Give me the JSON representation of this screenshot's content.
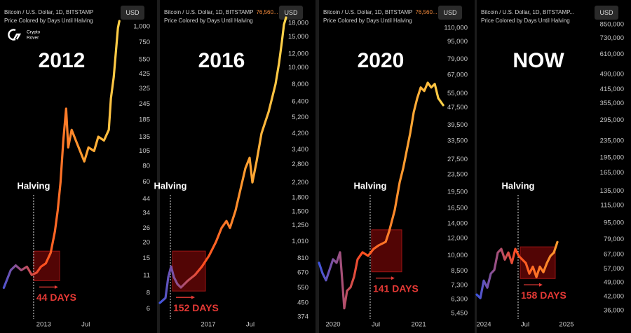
{
  "chart_data": [
    {
      "type": "line",
      "title": "2012",
      "header": "Bitcoin / U.S. Dollar, 1D, BITSTAMP",
      "subtitle": "Price Colored by Days Until Halving",
      "unit": "USD",
      "watermark": [
        "Crypto",
        "Rover"
      ],
      "log_scale": true,
      "colors": [
        "#3e55e0",
        "#ff4b1f",
        "#ff9a2e",
        "#ffd54a"
      ],
      "x": [
        2012.525,
        2012.608,
        2012.667,
        2012.733,
        2012.8,
        2012.858,
        2012.917,
        2012.967,
        2013.025,
        2013.083,
        2013.133,
        2013.167,
        2013.2,
        2013.233,
        2013.267,
        2013.292,
        2013.333,
        2013.383,
        2013.433,
        2013.483,
        2013.533,
        2013.6,
        2013.65,
        2013.717,
        2013.775,
        2013.8,
        2013.833,
        2013.858,
        2013.883,
        2013.9
      ],
      "values": [
        8.8,
        12.1,
        13.2,
        12.1,
        12.9,
        11.1,
        11.6,
        12.9,
        13.7,
        16.6,
        24.4,
        35.7,
        59.3,
        127,
        226,
        112,
        154,
        127,
        105,
        86.9,
        112,
        105,
        136,
        127,
        154,
        273,
        400,
        625,
        975,
        1107
      ],
      "xlim": [
        2012.48,
        2013.94
      ],
      "ylim": [
        5,
        1620
      ],
      "xticks": [
        2013,
        {
          "value": 2013.5,
          "label": "Jul"
        }
      ],
      "yticks": [
        {
          "value": 1000,
          "label": "1,000"
        },
        750,
        550,
        425,
        325,
        245,
        185,
        135,
        105,
        80,
        60,
        44,
        34,
        26,
        20,
        15,
        11,
        8,
        6
      ],
      "annotation": {
        "label": "Halving",
        "x": 2012.88,
        "days_label": "44 DAYS",
        "highlight": {
          "xlim": [
            2012.88,
            2013.19
          ],
          "ylim": [
            10,
            17.1
          ]
        }
      }
    },
    {
      "type": "line",
      "title": "2016",
      "header": "Bitcoin / U.S. Dollar, 1D, BITSTAMP",
      "header_price": "76,560...",
      "subtitle": "Price Colored by Days Until Halving",
      "unit": "USD",
      "log_scale": true,
      "colors": [
        "#3e55e0",
        "#ff4b1f",
        "#ff9a2e",
        "#ffd54a"
      ],
      "x": [
        2016.425,
        2016.492,
        2016.525,
        2016.558,
        2016.592,
        2016.633,
        2016.675,
        2016.758,
        2016.842,
        2016.925,
        2017.008,
        2017.092,
        2017.158,
        2017.217,
        2017.258,
        2017.325,
        2017.383,
        2017.442,
        2017.492,
        2017.525,
        2017.575,
        2017.633,
        2017.675,
        2017.717,
        2017.758,
        2017.8,
        2017.842,
        2017.875,
        2017.9,
        2017.925
      ],
      "values": [
        450,
        480,
        632,
        727,
        632,
        577,
        551,
        604,
        650,
        727,
        836,
        1005,
        1208,
        1325,
        1208,
        1524,
        2010,
        2655,
        3048,
        2202,
        2911,
        4207,
        4842,
        5559,
        6683,
        8054,
        10617,
        14027,
        17660,
        19360
      ],
      "xlim": [
        2016.425,
        2017.925
      ],
      "ylim": [
        364,
        24400
      ],
      "xticks": [
        2017,
        {
          "value": 2017.5,
          "label": "Jul"
        }
      ],
      "yticks": [
        {
          "value": 18000,
          "label": "18,000"
        },
        {
          "value": 15000,
          "label": "15,000"
        },
        {
          "value": 12000,
          "label": "12,000"
        },
        {
          "value": 10000,
          "label": "10,000"
        },
        {
          "value": 8000,
          "label": "8,000"
        },
        {
          "value": 6400,
          "label": "6,400"
        },
        {
          "value": 5200,
          "label": "5,200"
        },
        {
          "value": 4200,
          "label": "4,200"
        },
        {
          "value": 3400,
          "label": "3,400"
        },
        {
          "value": 2800,
          "label": "2,800"
        },
        {
          "value": 2200,
          "label": "2,200"
        },
        {
          "value": 1800,
          "label": "1,800"
        },
        {
          "value": 1500,
          "label": "1,500"
        },
        {
          "value": 1250,
          "label": "1,250"
        },
        {
          "value": 1010,
          "label": "1,010"
        },
        810,
        670,
        550,
        450,
        374
      ],
      "annotation": {
        "label": "Halving",
        "x": 2016.55,
        "days_label": "152 DAYS",
        "highlight": {
          "xlim": [
            2016.575,
            2016.967
          ],
          "ylim": [
            526,
            891
          ]
        }
      }
    },
    {
      "type": "line",
      "title": "2020",
      "header": "Bitcoin / U.S. Dollar, 1D, BITSTAMP",
      "header_price": "76,560...",
      "subtitle": "Price Colored by Days Until Halving",
      "unit": "USD",
      "log_scale": true,
      "colors": [
        "#3e55e0",
        "#ff4b1f",
        "#ff9a2e",
        "#ffd54a"
      ],
      "x": [
        2019.836,
        2019.877,
        2019.918,
        2019.959,
        2020.0,
        2020.041,
        2020.082,
        2020.107,
        2020.131,
        2020.164,
        2020.205,
        2020.246,
        2020.287,
        2020.344,
        2020.41,
        2020.475,
        2020.533,
        2020.615,
        2020.656,
        2020.721,
        2020.779,
        2020.82,
        2020.861,
        2020.902,
        2020.943,
        2020.984,
        2021.025,
        2021.066,
        2021.107,
        2021.148,
        2021.189,
        2021.23,
        2021.287
      ],
      "values": [
        9268,
        8300,
        7709,
        8610,
        9616,
        9268,
        10350,
        7709,
        5741,
        6902,
        7161,
        8000,
        9616,
        10350,
        9977,
        10740,
        11140,
        11560,
        12930,
        16150,
        21680,
        25120,
        30200,
        36310,
        45290,
        52480,
        58750,
        56620,
        61760,
        58750,
        60930,
        52480,
        48750
      ],
      "xlim": [
        2019.836,
        2021.311
      ],
      "ylim": [
        5130,
        147600
      ],
      "xticks": [
        2020,
        {
          "value": 2020.5,
          "label": "Jul"
        },
        2021
      ],
      "yticks": [
        {
          "value": 110000,
          "label": "110,000"
        },
        {
          "value": 95000,
          "label": "95,000"
        },
        {
          "value": 79000,
          "label": "79,000"
        },
        {
          "value": 67000,
          "label": "67,000"
        },
        {
          "value": 55000,
          "label": "55,000"
        },
        {
          "value": 47500,
          "label": "47,500"
        },
        {
          "value": 39500,
          "label": "39,500"
        },
        {
          "value": 33500,
          "label": "33,500"
        },
        {
          "value": 27500,
          "label": "27,500"
        },
        {
          "value": 23500,
          "label": "23,500"
        },
        {
          "value": 19500,
          "label": "19,500"
        },
        {
          "value": 16500,
          "label": "16,500"
        },
        {
          "value": 14000,
          "label": "14,000"
        },
        {
          "value": 12000,
          "label": "12,000"
        },
        {
          "value": 10000,
          "label": "10,000"
        },
        {
          "value": 8500,
          "label": "8,500"
        },
        {
          "value": 7300,
          "label": "7,300"
        },
        {
          "value": 6300,
          "label": "6,300"
        },
        {
          "value": 5450,
          "label": "5,450"
        }
      ],
      "annotation": {
        "label": "Halving",
        "x": 2020.434,
        "days_label": "141 DAYS",
        "highlight": {
          "xlim": [
            2020.451,
            2020.803
          ],
          "ylim": [
            8430,
            13120
          ]
        }
      }
    },
    {
      "type": "line",
      "title": "NOW",
      "header": "Bitcoin / U.S. Dollar, 1D, BITSTAMP...",
      "subtitle": "Price Colored by Days Until Halving",
      "unit": "USD",
      "log_scale": true,
      "colors": [
        "#3e55e0",
        "#ff4b1f",
        "#ff9a2e",
        "#ffd54a"
      ],
      "x": [
        2023.915,
        2023.958,
        2024.0,
        2024.042,
        2024.085,
        2024.127,
        2024.169,
        2024.212,
        2024.254,
        2024.297,
        2024.339,
        2024.381,
        2024.424,
        2024.466,
        2024.508,
        2024.551,
        2024.593,
        2024.636,
        2024.678,
        2024.72,
        2024.763,
        2024.805,
        2024.847,
        2024.89
      ],
      "values": [
        42950,
        41300,
        50120,
        46360,
        54200,
        56360,
        68390,
        71120,
        63240,
        68390,
        60810,
        71120,
        65770,
        63240,
        60810,
        54200,
        58480,
        52120,
        58480,
        55000,
        60810,
        65770,
        68390,
        76740
      ],
      "xlim": [
        2023.915,
        2025.356
      ],
      "ylim": [
        32800,
        1114000
      ],
      "xticks": [
        2024,
        {
          "value": 2024.5,
          "label": "Jul"
        },
        2025
      ],
      "yticks": [
        {
          "value": 850000,
          "label": "850,000"
        },
        {
          "value": 730000,
          "label": "730,000"
        },
        {
          "value": 610000,
          "label": "610,000"
        },
        {
          "value": 490000,
          "label": "490,000"
        },
        {
          "value": 415000,
          "label": "415,000"
        },
        {
          "value": 355000,
          "label": "355,000"
        },
        {
          "value": 295000,
          "label": "295,000"
        },
        {
          "value": 235000,
          "label": "235,000"
        },
        {
          "value": 195000,
          "label": "195,000"
        },
        {
          "value": 165000,
          "label": "165,000"
        },
        {
          "value": 135000,
          "label": "135,000"
        },
        {
          "value": 115000,
          "label": "115,000"
        },
        {
          "value": 95000,
          "label": "95,000"
        },
        {
          "value": 79000,
          "label": "79,000"
        },
        {
          "value": 67000,
          "label": "67,000"
        },
        {
          "value": 57000,
          "label": "57,000"
        },
        {
          "value": 49000,
          "label": "49,000"
        },
        {
          "value": 42000,
          "label": "42,000"
        },
        {
          "value": 36000,
          "label": "36,000"
        }
      ],
      "annotation": {
        "label": "Halving",
        "x": 2024.415,
        "days_label": "158 DAYS",
        "highlight": {
          "xlim": [
            2024.441,
            2024.864
          ],
          "ylim": [
            51290,
            72780
          ]
        }
      }
    }
  ]
}
